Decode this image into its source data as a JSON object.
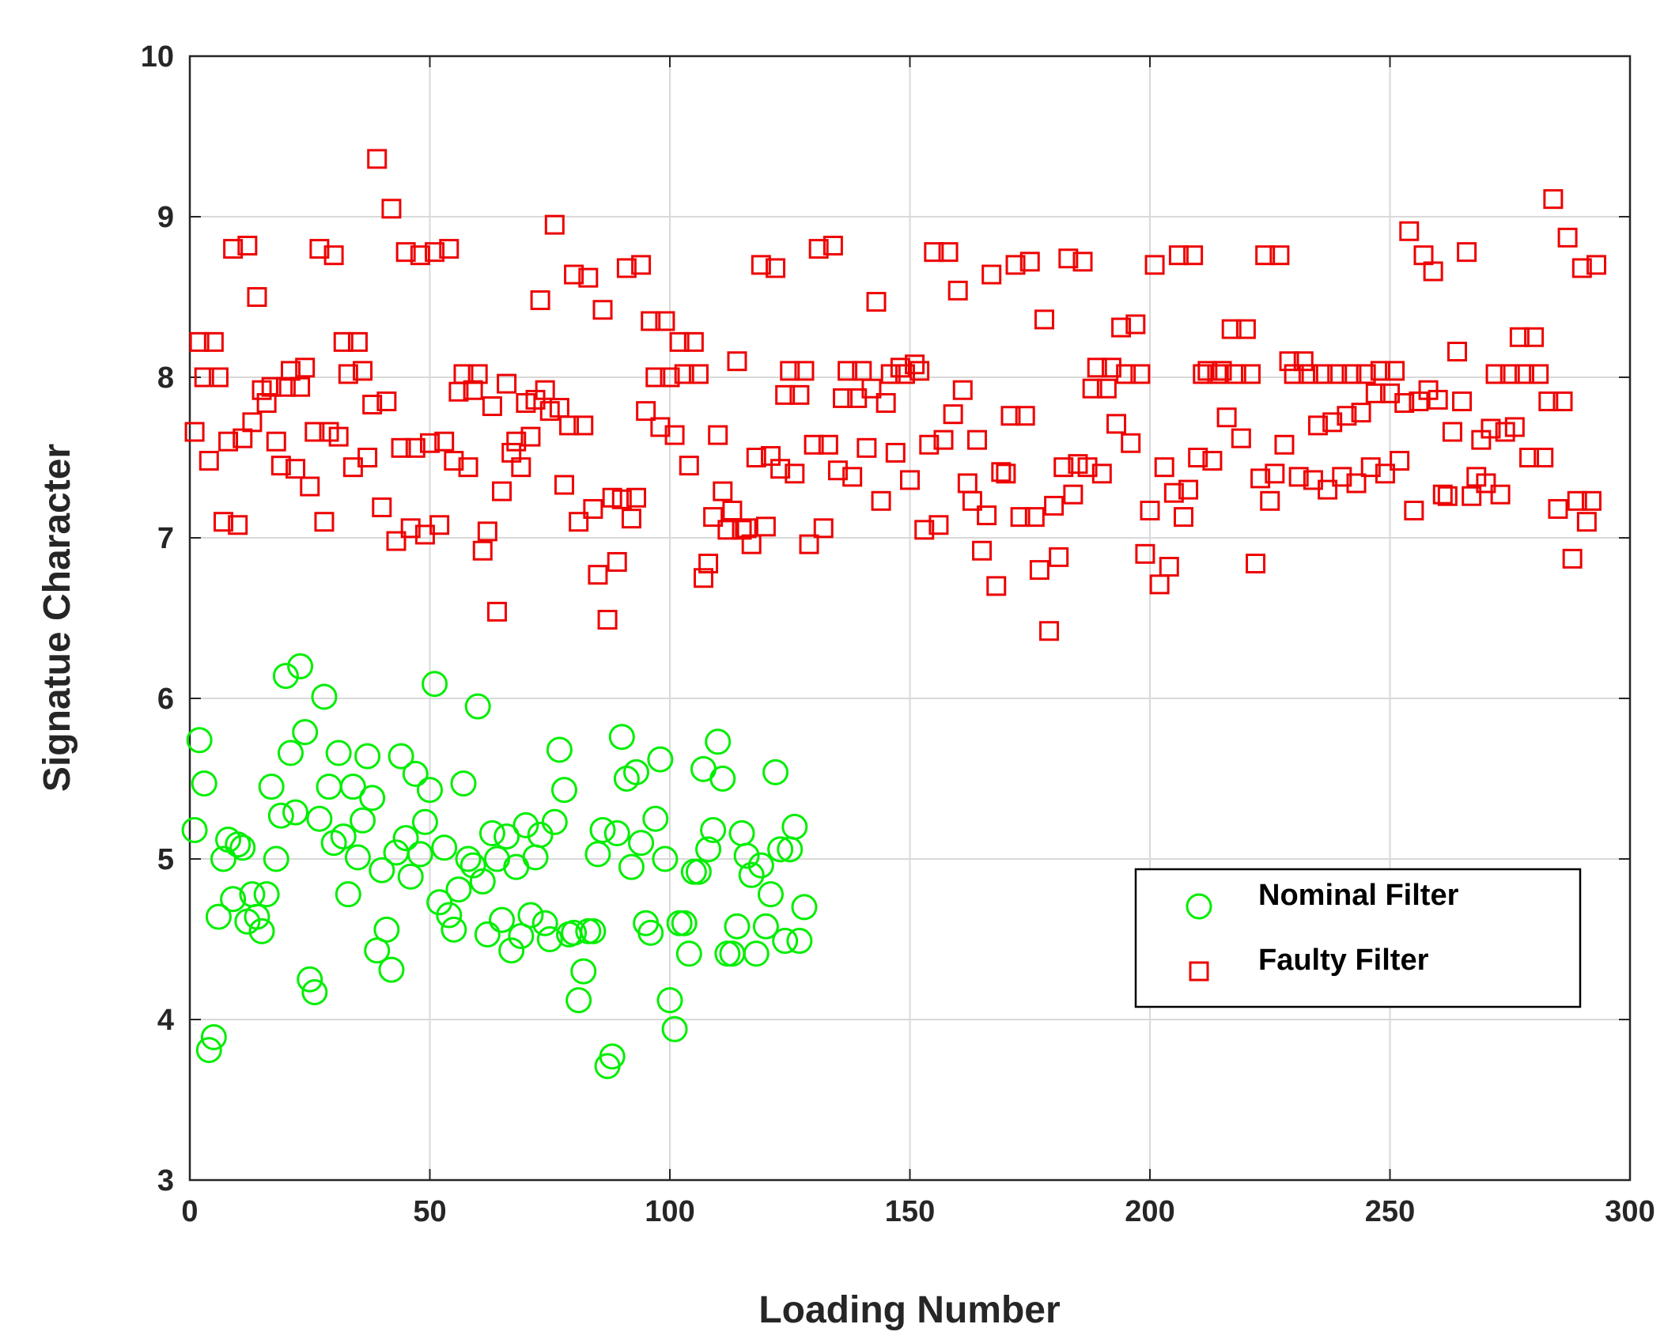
{
  "chart_data": {
    "type": "scatter",
    "x_label": "Loading Number",
    "y_label": "Signatue Character",
    "xlim": [
      0,
      300
    ],
    "xticks": [
      0,
      50,
      100,
      150,
      200,
      250,
      300
    ],
    "ylim": [
      3,
      10
    ],
    "yticks": [
      3,
      4,
      5,
      6,
      7,
      8,
      9,
      10
    ],
    "grid": true,
    "legend": "lower right",
    "series": [
      {
        "name": "Nominal Filter",
        "color": "#00ee00",
        "marker": "circle",
        "x": [
          1,
          2,
          3,
          4,
          5,
          6,
          7,
          8,
          9,
          10,
          11,
          12,
          13,
          14,
          15,
          16,
          17,
          18,
          19,
          20,
          21,
          22,
          23,
          24,
          25,
          26,
          27,
          28,
          29,
          30,
          31,
          32,
          33,
          34,
          35,
          36,
          37,
          38,
          39,
          40,
          41,
          42,
          43,
          44,
          45,
          46,
          47,
          48,
          49,
          50,
          51,
          52,
          53,
          54,
          55,
          56,
          57,
          58,
          59,
          60,
          61,
          62,
          63,
          64,
          65,
          66,
          67,
          68,
          69,
          70,
          71,
          72,
          73,
          74,
          75,
          76,
          77,
          78,
          79,
          80,
          81,
          82,
          83,
          84,
          85,
          86,
          87,
          88,
          89,
          90,
          91,
          92,
          93,
          94,
          95,
          96,
          97,
          98,
          99,
          100,
          101,
          102,
          103,
          104,
          105,
          106,
          107,
          108,
          109,
          110,
          111,
          112,
          113,
          114,
          115,
          116,
          117,
          118,
          119,
          120,
          121,
          122,
          123,
          124,
          125,
          126,
          127,
          128
        ],
        "values": [
          5.18,
          5.74,
          5.47,
          3.81,
          3.89,
          4.64,
          5.0,
          5.12,
          4.75,
          5.09,
          5.07,
          4.61,
          4.78,
          4.64,
          4.55,
          4.78,
          5.45,
          5.0,
          5.27,
          6.14,
          5.66,
          5.29,
          6.2,
          5.79,
          4.25,
          4.17,
          5.25,
          6.01,
          5.45,
          5.1,
          5.66,
          5.14,
          4.78,
          5.45,
          5.01,
          5.24,
          5.64,
          5.38,
          4.43,
          4.93,
          4.56,
          4.31,
          5.04,
          5.64,
          5.13,
          4.89,
          5.53,
          5.03,
          5.23,
          5.43,
          6.09,
          4.73,
          5.07,
          4.65,
          4.56,
          4.81,
          5.47,
          5.0,
          4.96,
          5.95,
          4.86,
          4.53,
          5.16,
          5.0,
          4.62,
          5.14,
          4.43,
          4.95,
          4.52,
          5.21,
          4.65,
          5.01,
          5.15,
          4.6,
          4.5,
          5.23,
          5.68,
          5.43,
          4.53,
          4.54,
          4.12,
          4.3,
          4.55,
          4.55,
          5.03,
          5.18,
          3.71,
          3.77,
          5.16,
          5.76,
          5.5,
          4.95,
          5.54,
          5.1,
          4.6,
          4.54,
          5.25,
          5.62,
          5.0,
          4.12,
          3.94,
          4.6,
          4.6,
          4.41,
          4.92,
          4.92,
          5.56,
          5.06,
          5.18,
          5.73,
          5.5,
          4.41,
          4.41,
          4.58,
          5.16,
          5.02,
          4.9,
          4.41,
          4.96,
          4.58,
          4.78,
          5.54,
          5.06,
          4.49,
          5.06,
          5.2,
          4.49,
          4.7
        ]
      },
      {
        "name": "Faulty Filter",
        "color": "#ee0000",
        "marker": "square",
        "x": [
          1,
          2,
          3,
          4,
          5,
          6,
          7,
          8,
          9,
          10,
          11,
          12,
          13,
          14,
          15,
          16,
          17,
          18,
          19,
          20,
          21,
          22,
          23,
          24,
          25,
          26,
          27,
          28,
          29,
          30,
          31,
          32,
          33,
          34,
          35,
          36,
          37,
          38,
          39,
          40,
          41,
          42,
          43,
          44,
          45,
          46,
          47,
          48,
          49,
          50,
          51,
          52,
          53,
          54,
          55,
          56,
          57,
          58,
          59,
          60,
          61,
          62,
          63,
          64,
          65,
          66,
          67,
          68,
          69,
          70,
          71,
          72,
          73,
          74,
          75,
          76,
          77,
          78,
          79,
          80,
          81,
          82,
          83,
          84,
          85,
          86,
          87,
          88,
          89,
          90,
          91,
          92,
          93,
          94,
          95,
          96,
          97,
          98,
          99,
          100,
          101,
          102,
          103,
          104,
          105,
          106,
          107,
          108,
          109,
          110,
          111,
          112,
          113,
          114,
          115,
          116,
          117,
          118,
          119,
          120,
          121,
          122,
          123,
          124,
          125,
          126,
          127,
          128,
          129,
          130,
          131,
          132,
          133,
          134,
          135,
          136,
          137,
          138,
          139,
          140,
          141,
          142,
          143,
          144,
          145,
          146,
          147,
          148,
          149,
          150,
          151,
          152,
          153,
          154,
          155,
          156,
          157,
          158,
          159,
          160,
          161,
          162,
          163,
          164,
          165,
          166,
          167,
          168,
          169,
          170,
          171,
          172,
          173,
          174,
          175,
          176,
          177,
          178,
          179,
          180,
          181,
          182,
          183,
          184,
          185,
          186,
          187,
          188,
          189,
          190,
          191,
          192,
          193,
          194,
          195,
          196,
          197,
          198,
          199,
          200,
          201,
          202,
          203,
          204,
          205,
          206,
          207,
          208,
          209,
          210,
          211,
          212,
          213,
          214,
          215,
          216,
          217,
          218,
          219,
          220,
          221,
          222,
          223,
          224,
          225,
          226,
          227,
          228,
          229,
          230,
          231,
          232,
          233,
          234,
          235,
          236,
          237,
          238,
          239,
          240,
          241,
          242,
          243,
          244,
          245,
          246,
          247,
          248,
          249,
          250,
          251,
          252,
          253,
          254,
          255,
          256,
          257,
          258,
          259,
          260,
          261,
          262,
          263,
          264,
          265,
          266,
          267,
          268,
          269,
          270,
          271,
          272,
          273,
          274,
          275,
          276,
          277,
          278,
          279,
          280,
          281,
          282,
          283,
          284,
          285,
          286,
          287,
          288,
          289,
          290,
          291,
          292,
          293
        ],
        "values": [
          7.66,
          8.22,
          8.0,
          7.48,
          8.22,
          8.0,
          7.1,
          7.6,
          8.8,
          7.08,
          7.62,
          8.82,
          7.72,
          8.5,
          7.92,
          7.84,
          7.94,
          7.6,
          7.45,
          7.94,
          8.04,
          7.43,
          7.94,
          8.06,
          7.32,
          7.66,
          8.8,
          7.1,
          7.66,
          8.76,
          7.63,
          8.22,
          8.02,
          7.44,
          8.22,
          8.04,
          7.5,
          7.83,
          9.36,
          7.19,
          7.85,
          9.05,
          6.98,
          7.56,
          8.78,
          7.06,
          7.56,
          8.76,
          7.02,
          7.59,
          8.78,
          7.08,
          7.6,
          8.8,
          7.48,
          7.91,
          8.02,
          7.44,
          7.92,
          8.02,
          6.92,
          7.04,
          7.82,
          6.54,
          7.29,
          7.96,
          7.53,
          7.6,
          7.44,
          7.84,
          7.63,
          7.86,
          8.48,
          7.92,
          7.79,
          8.95,
          7.81,
          7.33,
          7.7,
          8.64,
          7.1,
          7.7,
          8.62,
          7.18,
          6.77,
          8.42,
          6.49,
          7.25,
          6.85,
          7.24,
          8.68,
          7.12,
          7.25,
          8.7,
          7.79,
          8.35,
          8.0,
          7.69,
          8.35,
          8.0,
          7.64,
          8.22,
          8.02,
          7.45,
          8.22,
          8.02,
          6.75,
          6.84,
          7.13,
          7.64,
          7.29,
          7.05,
          7.17,
          8.1,
          7.05,
          7.06,
          6.96,
          7.5,
          8.7,
          7.07,
          7.51,
          8.68,
          7.43,
          7.89,
          8.04,
          7.4,
          7.89,
          8.04,
          6.96,
          7.58,
          8.8,
          7.06,
          7.58,
          8.82,
          7.42,
          7.87,
          8.04,
          7.38,
          7.87,
          8.04,
          7.56,
          7.93,
          8.47,
          7.23,
          7.84,
          8.02,
          7.53,
          8.06,
          8.02,
          7.36,
          8.08,
          8.04,
          7.05,
          7.58,
          8.78,
          7.08,
          7.61,
          8.78,
          7.77,
          8.54,
          7.92,
          7.34,
          7.23,
          7.61,
          6.92,
          7.14,
          8.64,
          6.7,
          7.41,
          7.4,
          7.76,
          8.7,
          7.13,
          7.76,
          8.72,
          7.13,
          6.8,
          8.36,
          6.42,
          7.2,
          6.88,
          7.44,
          8.74,
          7.27,
          7.46,
          8.72,
          7.44,
          7.93,
          8.06,
          7.4,
          7.93,
          8.06,
          7.71,
          8.31,
          8.02,
          7.59,
          8.33,
          8.02,
          6.9,
          7.17,
          8.7,
          6.71,
          7.44,
          6.82,
          7.28,
          8.76,
          7.13,
          7.3,
          8.76,
          7.5,
          8.02,
          8.04,
          7.48,
          8.02,
          8.04,
          7.75,
          8.3,
          8.02,
          7.62,
          8.3,
          8.02,
          6.84,
          7.37,
          8.76,
          7.23,
          7.4,
          8.76,
          7.58,
          8.1,
          8.02,
          7.38,
          8.1,
          8.02,
          7.36,
          7.7,
          8.02,
          7.3,
          7.72,
          8.02,
          7.38,
          7.76,
          8.02,
          7.34,
          7.78,
          8.02,
          7.44,
          7.9,
          8.04,
          7.4,
          7.9,
          8.04,
          7.48,
          7.84,
          8.91,
          7.17,
          7.85,
          8.76,
          7.92,
          8.66,
          7.86,
          7.27,
          7.26,
          7.66,
          8.16,
          7.85,
          8.78,
          7.26,
          7.38,
          7.61,
          7.34,
          7.68,
          8.02,
          7.27,
          7.66,
          8.02,
          7.69,
          8.25,
          8.02,
          7.5,
          8.25,
          8.02,
          7.5,
          7.85,
          9.11,
          7.18,
          7.85,
          8.87,
          6.87,
          7.23,
          8.68,
          7.1,
          7.23,
          8.7
        ]
      }
    ]
  }
}
